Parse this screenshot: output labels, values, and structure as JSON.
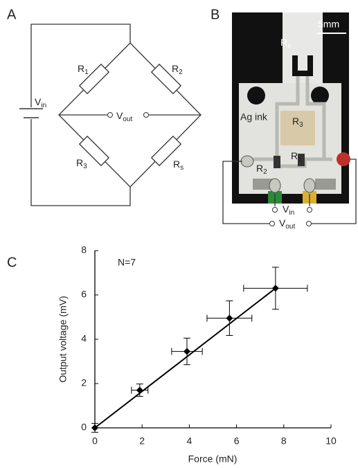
{
  "diagram": {
    "label": "A",
    "vin": {
      "text": "V",
      "sub": "in"
    },
    "vout": {
      "text": "V",
      "sub": "out"
    },
    "r1": {
      "text": "R",
      "sub": "1"
    },
    "r2": {
      "text": "R",
      "sub": "2"
    },
    "r3": {
      "text": "R",
      "sub": "3"
    },
    "rs": {
      "text": "R",
      "sub": "s"
    }
  },
  "photo": {
    "label": "B",
    "scale": "5mm",
    "rs": {
      "text": "R",
      "sub": "s"
    },
    "ag_ink": "Ag ink",
    "r3": {
      "text": "R",
      "sub": "3"
    },
    "r1": {
      "text": "R",
      "sub": "1"
    },
    "r2": {
      "text": "R",
      "sub": "2"
    },
    "vin": {
      "text": "V",
      "sub": "in"
    },
    "vout": {
      "text": "V",
      "sub": "out"
    }
  },
  "chart_data": {
    "type": "scatter",
    "label": "C",
    "annotation": "N=7",
    "x_label": "Force (mN)",
    "y_label": "Output voltage (mV)",
    "x": [
      0,
      1.9,
      3.9,
      5.7,
      7.65
    ],
    "values": [
      0,
      1.7,
      3.45,
      4.95,
      6.3
    ],
    "xerr": [
      0,
      0.35,
      0.65,
      0.95,
      1.35
    ],
    "yerr": [
      0.2,
      0.28,
      0.6,
      0.78,
      0.95
    ],
    "color": "#000000",
    "fit": {
      "x": [
        0,
        7.65
      ],
      "values": [
        0,
        6.3
      ]
    },
    "xlim": [
      0,
      10
    ],
    "ylim": [
      0,
      8
    ],
    "xticks": [
      0,
      2,
      4,
      6,
      8,
      10
    ],
    "yticks": [
      0,
      2,
      4,
      6,
      8
    ]
  }
}
